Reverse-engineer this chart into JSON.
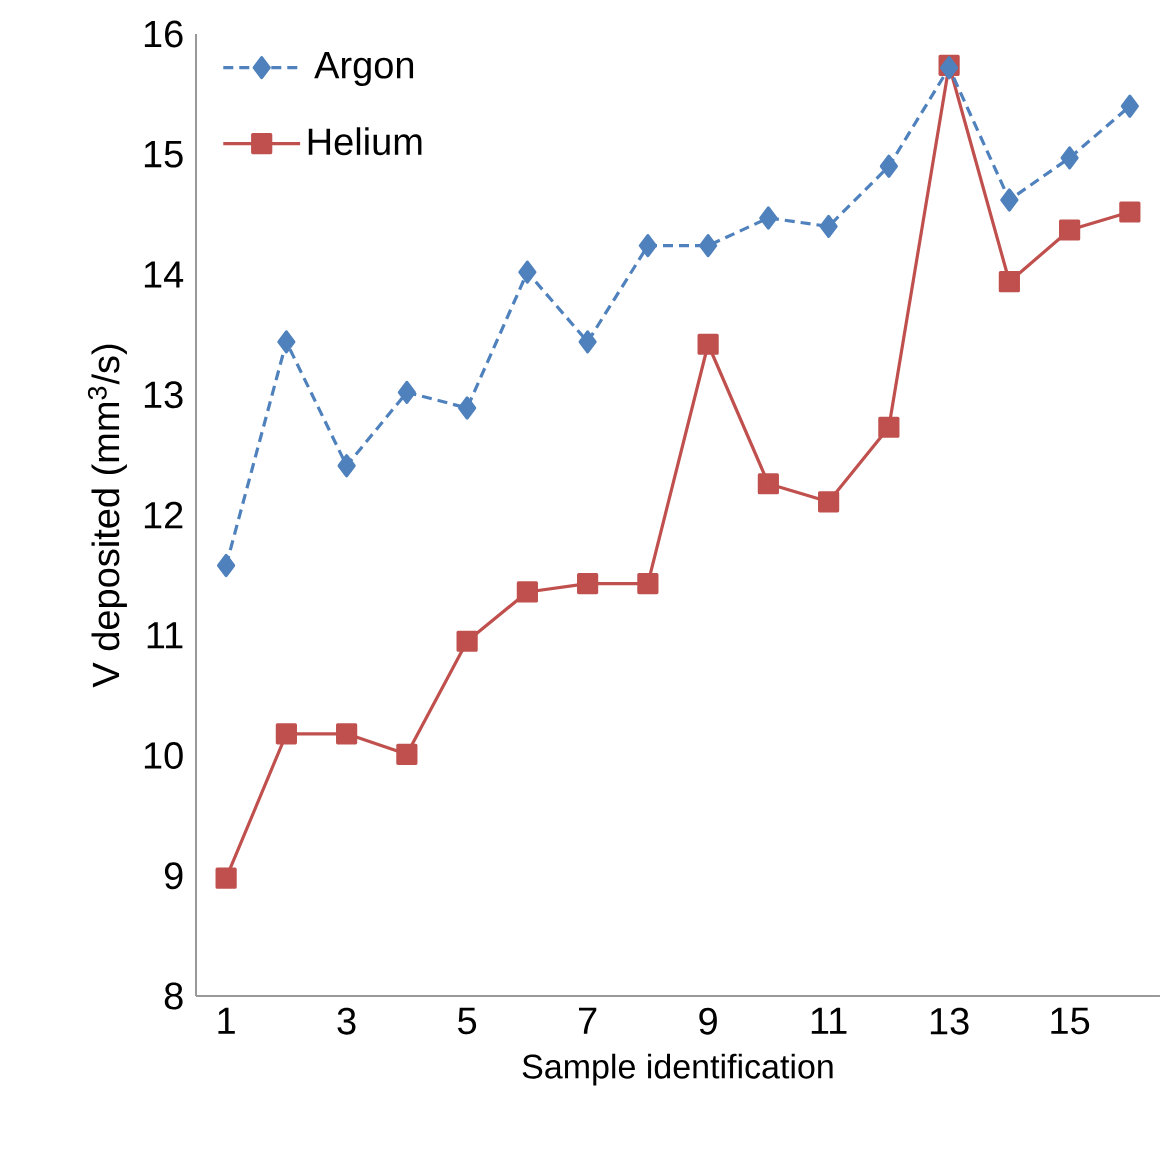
{
  "chart_data": {
    "type": "line",
    "xlabel": "Sample identification",
    "ylabel": "V deposited (mm$^{3}$/s)",
    "x": [
      1,
      2,
      3,
      4,
      5,
      6,
      7,
      8,
      9,
      10,
      11,
      12,
      13,
      14,
      15,
      16
    ],
    "series": [
      {
        "name": "Argon",
        "color": "#4f81bd",
        "marker": "diamond",
        "line_style": "dashed",
        "values": [
          11.58,
          13.44,
          12.41,
          13.02,
          12.89,
          14.02,
          13.44,
          14.24,
          14.24,
          14.47,
          14.4,
          14.9,
          15.72,
          14.62,
          14.97,
          15.4
        ]
      },
      {
        "name": "Helium",
        "color": "#c0504d",
        "marker": "square",
        "line_style": "solid",
        "values": [
          8.98,
          10.18,
          10.18,
          10.01,
          10.95,
          11.36,
          11.43,
          11.43,
          13.42,
          12.26,
          12.11,
          12.73,
          15.74,
          13.94,
          14.37,
          14.52
        ]
      }
    ],
    "xlim": [
      0.5,
      16.5
    ],
    "ylim": [
      8,
      16
    ],
    "xticks": [
      1,
      3,
      5,
      7,
      9,
      11,
      13,
      15
    ],
    "yticks": [
      8,
      9,
      10,
      11,
      12,
      13,
      14,
      15,
      16
    ],
    "legend": "top left",
    "grid": false
  }
}
